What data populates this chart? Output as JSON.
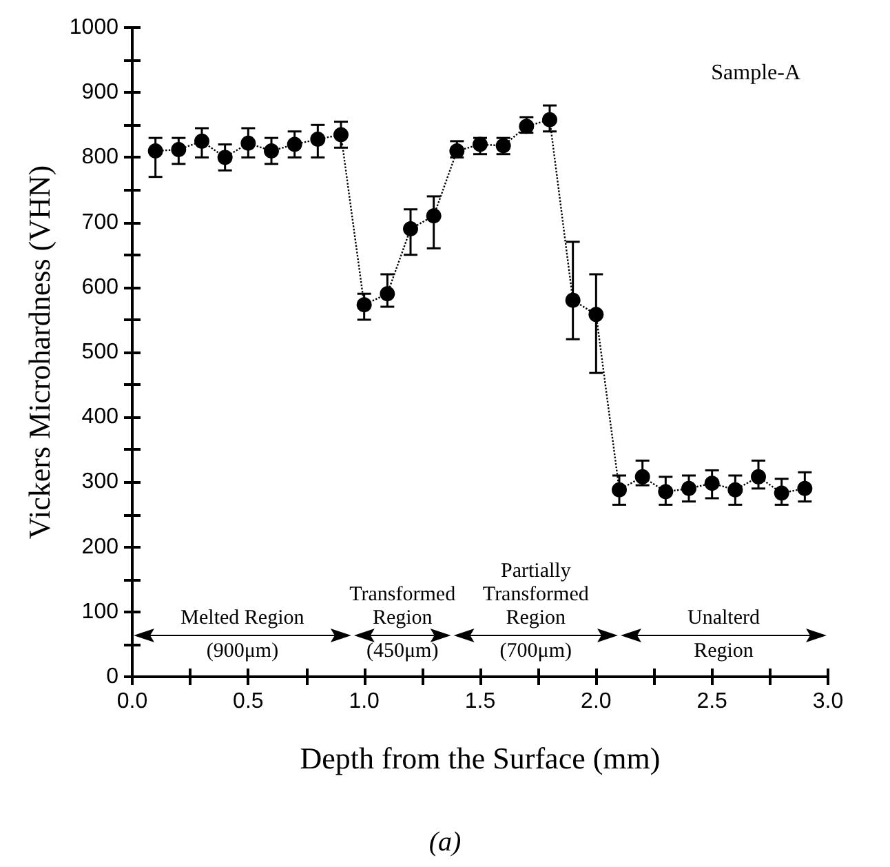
{
  "chart_data": {
    "type": "line",
    "xlabel": "Depth from the Surface (mm)",
    "ylabel": "Vickers Microhardness (VHN)",
    "annotations": [
      "Sample-A",
      "(a)",
      "Melted Region\n(900μm)",
      "Transformed\nRegion\n(450μm)",
      "Partially\nTransformed\nRegion\n(700μm)",
      "Unalterd\nRegion"
    ],
    "x": [
      0.1,
      0.2,
      0.3,
      0.4,
      0.5,
      0.6,
      0.7,
      0.8,
      0.9,
      1.0,
      1.1,
      1.2,
      1.3,
      1.4,
      1.5,
      1.6,
      1.7,
      1.8,
      1.9,
      2.0,
      2.1,
      2.2,
      2.3,
      2.4,
      2.5,
      2.6,
      2.7,
      2.8,
      2.9
    ],
    "series": [
      {
        "color": "#000000",
        "values": [
          810,
          812,
          825,
          800,
          822,
          810,
          820,
          828,
          835,
          573,
          590,
          690,
          710,
          810,
          820,
          818,
          848,
          858,
          580,
          558,
          288,
          308,
          285,
          290,
          298,
          288,
          308,
          283,
          290
        ],
        "errors": [
          [
            770,
            830
          ],
          [
            790,
            830
          ],
          [
            800,
            845
          ],
          [
            780,
            820
          ],
          [
            800,
            845
          ],
          [
            790,
            830
          ],
          [
            800,
            840
          ],
          [
            800,
            850
          ],
          [
            815,
            855
          ],
          [
            550,
            590
          ],
          [
            570,
            620
          ],
          [
            650,
            720
          ],
          [
            660,
            740
          ],
          [
            800,
            825
          ],
          [
            805,
            830
          ],
          [
            805,
            830
          ],
          [
            838,
            862
          ],
          [
            840,
            880
          ],
          [
            520,
            670
          ],
          [
            468,
            620
          ],
          [
            265,
            310
          ],
          [
            295,
            333
          ],
          [
            265,
            308
          ],
          [
            270,
            310
          ],
          [
            275,
            318
          ],
          [
            265,
            310
          ],
          [
            290,
            333
          ],
          [
            265,
            305
          ],
          [
            270,
            315
          ]
        ]
      }
    ],
    "xlim": [
      0,
      3
    ],
    "xticks": [
      {
        "value": 0,
        "label": "0.0"
      },
      {
        "value": 0.5,
        "label": "0.5"
      },
      {
        "value": 1,
        "label": "1.0"
      },
      {
        "value": 1.5,
        "label": "1.5"
      },
      {
        "value": 2,
        "label": "2.0"
      },
      {
        "value": 2.5,
        "label": "2.5"
      },
      {
        "value": 3,
        "label": "3.0"
      }
    ],
    "ylim": [
      0,
      1000
    ],
    "yticks": [
      0,
      100,
      200,
      300,
      400,
      500,
      600,
      700,
      800,
      900,
      1000
    ],
    "grid": false,
    "marker": "circle",
    "line_style": "dotted"
  }
}
